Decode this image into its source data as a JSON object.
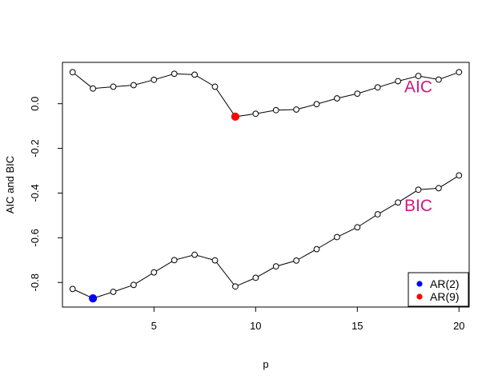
{
  "chart_data": {
    "type": "line",
    "title": "",
    "xlabel": "p",
    "ylabel": "AIC and BIC",
    "xlim": [
      0.5,
      20.5
    ],
    "ylim": [
      -0.91,
      0.185
    ],
    "xticks": [
      5,
      10,
      15,
      20
    ],
    "xtick_labels": [
      "5",
      "10",
      "15",
      "20"
    ],
    "yticks": [
      -0.8,
      -0.6,
      -0.4,
      -0.2,
      0.0
    ],
    "ytick_labels": [
      "-0.8",
      "-0.6",
      "-0.4",
      "-0.2",
      "0.0"
    ],
    "grid": false,
    "x": [
      1,
      2,
      3,
      4,
      5,
      6,
      7,
      8,
      9,
      10,
      11,
      12,
      13,
      14,
      15,
      16,
      17,
      18,
      19,
      20
    ],
    "series": [
      {
        "name": "AIC",
        "color": "#000000",
        "values": [
          0.141,
          0.068,
          0.076,
          0.083,
          0.107,
          0.134,
          0.13,
          0.076,
          -0.058,
          -0.045,
          -0.029,
          -0.026,
          -0.002,
          0.024,
          0.045,
          0.073,
          0.101,
          0.124,
          0.108,
          0.141
        ]
      },
      {
        "name": "BIC",
        "color": "#000000",
        "values": [
          -0.829,
          -0.871,
          -0.842,
          -0.811,
          -0.755,
          -0.7,
          -0.676,
          -0.701,
          -0.818,
          -0.779,
          -0.728,
          -0.702,
          -0.651,
          -0.597,
          -0.553,
          -0.495,
          -0.442,
          -0.385,
          -0.378,
          -0.321
        ]
      }
    ],
    "series_labels": [
      {
        "text": "AIC",
        "color": "#CC1A82",
        "x": 18.0,
        "y": 0.05
      },
      {
        "text": "BIC",
        "color": "#CC1A82",
        "x": 18.0,
        "y": -0.48
      }
    ],
    "highlights": [
      {
        "series": "BIC",
        "x": 2,
        "y": -0.871,
        "color": "#0000FF"
      },
      {
        "series": "AIC",
        "x": 9,
        "y": -0.058,
        "color": "#FF0000"
      }
    ],
    "legend": {
      "position": "bottom-right",
      "entries": [
        {
          "label": "AR(2)",
          "color": "#0000FF"
        },
        {
          "label": "AR(9)",
          "color": "#FF0000"
        }
      ]
    }
  }
}
